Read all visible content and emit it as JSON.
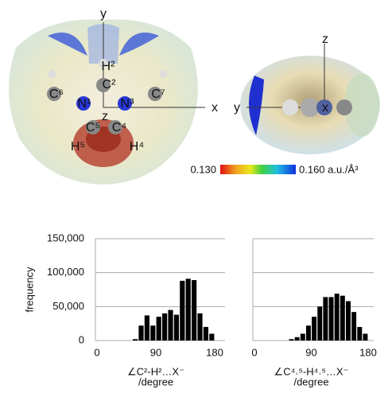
{
  "figure_labels": {
    "left": {
      "axis_y": "y",
      "axis_x": "x",
      "axis_z": "z",
      "H2": "H²",
      "C2": "C²",
      "C6": "C⁶",
      "N1": "N¹",
      "N3": "N³",
      "C7": "C⁷",
      "C5": "C⁵",
      "C4": "C⁴",
      "H5": "H⁵",
      "H4": "H⁴"
    },
    "right": {
      "axis_z": "z",
      "axis_y": "y",
      "axis_x": "x"
    },
    "colorbar": {
      "min": "0.130",
      "max": "0.160 a.u./Å³"
    }
  },
  "chart_data": [
    {
      "type": "histogram",
      "ylabel": "frequency",
      "xlabel": [
        "∠C²-H²…X⁻",
        "/degree"
      ],
      "bins": [
        0,
        9,
        18,
        27,
        36,
        45,
        54,
        63,
        72,
        81,
        90,
        99,
        108,
        117,
        126,
        135,
        144,
        153,
        162,
        171,
        180
      ],
      "values": [
        0,
        0,
        0,
        0,
        0,
        0,
        2000,
        22000,
        37000,
        22000,
        35000,
        40000,
        45000,
        38000,
        88000,
        91000,
        89000,
        40000,
        20000,
        10000
      ],
      "color": "#000000",
      "xlim": [
        0,
        180
      ],
      "xticks": [
        0,
        90,
        180
      ],
      "ylim": [
        0,
        150000
      ],
      "yticks": [
        0,
        {
          "value": 50000,
          "label": "50,000"
        },
        {
          "value": 100000,
          "label": "100,000"
        },
        {
          "value": 150000,
          "label": "150,000"
        }
      ],
      "ytick_labels": true,
      "grid": true
    },
    {
      "type": "histogram",
      "xlabel": [
        "∠C⁴˒⁵-H⁴˒⁵…X⁻",
        "/degree"
      ],
      "bins": [
        0,
        9,
        18,
        27,
        36,
        45,
        54,
        63,
        72,
        81,
        90,
        99,
        108,
        117,
        126,
        135,
        144,
        153,
        162,
        171,
        180
      ],
      "values": [
        0,
        0,
        0,
        0,
        0,
        0,
        2000,
        5000,
        10000,
        22000,
        35000,
        50000,
        64000,
        64000,
        69000,
        66000,
        58000,
        42000,
        20000,
        10000
      ],
      "color": "#000000",
      "xlim": [
        0,
        180
      ],
      "xticks": [
        0,
        90,
        180
      ],
      "ylim": [
        0,
        150000
      ],
      "yticks": [
        0,
        50000,
        100000,
        150000
      ],
      "ytick_labels": false,
      "grid": true
    }
  ]
}
